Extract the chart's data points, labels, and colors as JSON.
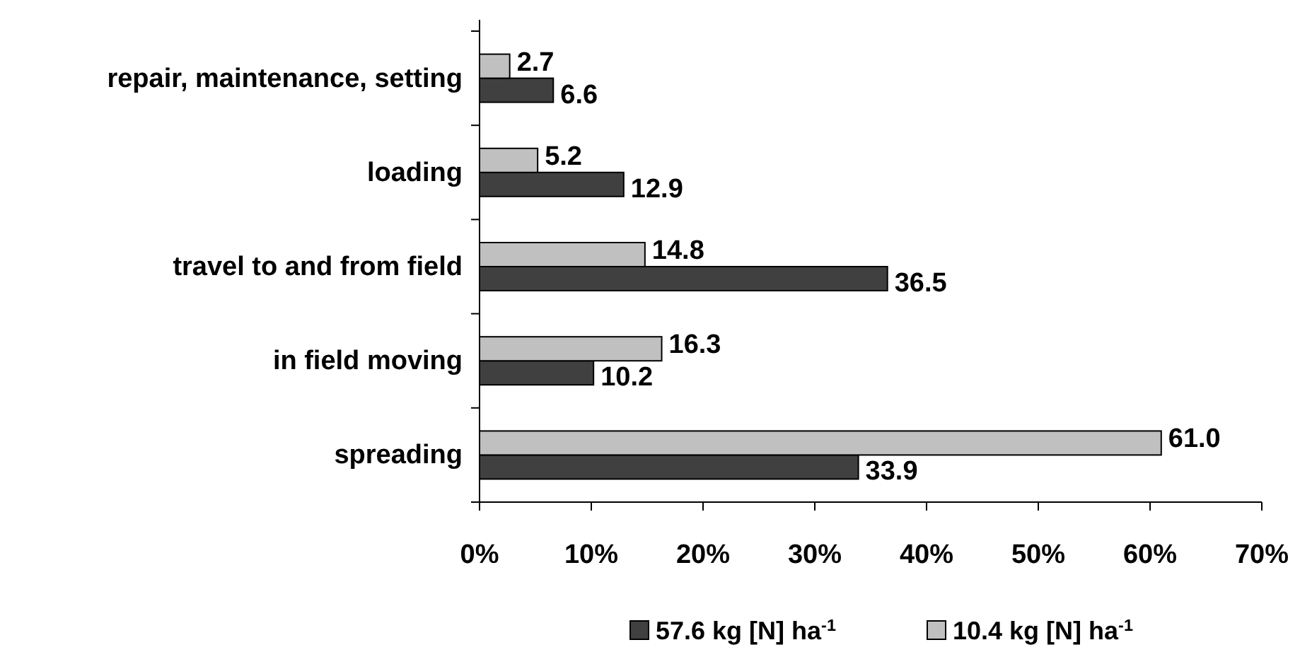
{
  "chart_data": {
    "type": "bar",
    "orientation": "horizontal",
    "categories": [
      "repair, maintenance, setting",
      "loading",
      "travel to and from field",
      "in field moving",
      "spreading"
    ],
    "series": [
      {
        "name": "57.6 kg [N] ha$^{-1}$",
        "color": "#404040",
        "values": [
          6.6,
          12.9,
          36.5,
          10.2,
          33.9
        ],
        "value_labels": [
          "6.6",
          "12.9",
          "36.5",
          "10.2",
          "33.9"
        ]
      },
      {
        "name": "10.4 kg [N] ha$^{-1}$",
        "color": "#c0c0c0",
        "values": [
          2.7,
          5.2,
          14.8,
          16.3,
          61.0
        ],
        "value_labels": [
          "2.7",
          "5.2",
          "14.8",
          "16.3",
          "61.0"
        ]
      }
    ],
    "xlim": [
      0,
      70
    ],
    "xticks": [
      {
        "value": 0,
        "label": "0%"
      },
      {
        "value": 10,
        "label": "10%"
      },
      {
        "value": 20,
        "label": "20%"
      },
      {
        "value": 30,
        "label": "30%"
      },
      {
        "value": 40,
        "label": "40%"
      },
      {
        "value": 50,
        "label": "50%"
      },
      {
        "value": 60,
        "label": "60%"
      },
      {
        "value": 70,
        "label": "70%"
      }
    ],
    "grid": false,
    "legend": "bottom"
  }
}
